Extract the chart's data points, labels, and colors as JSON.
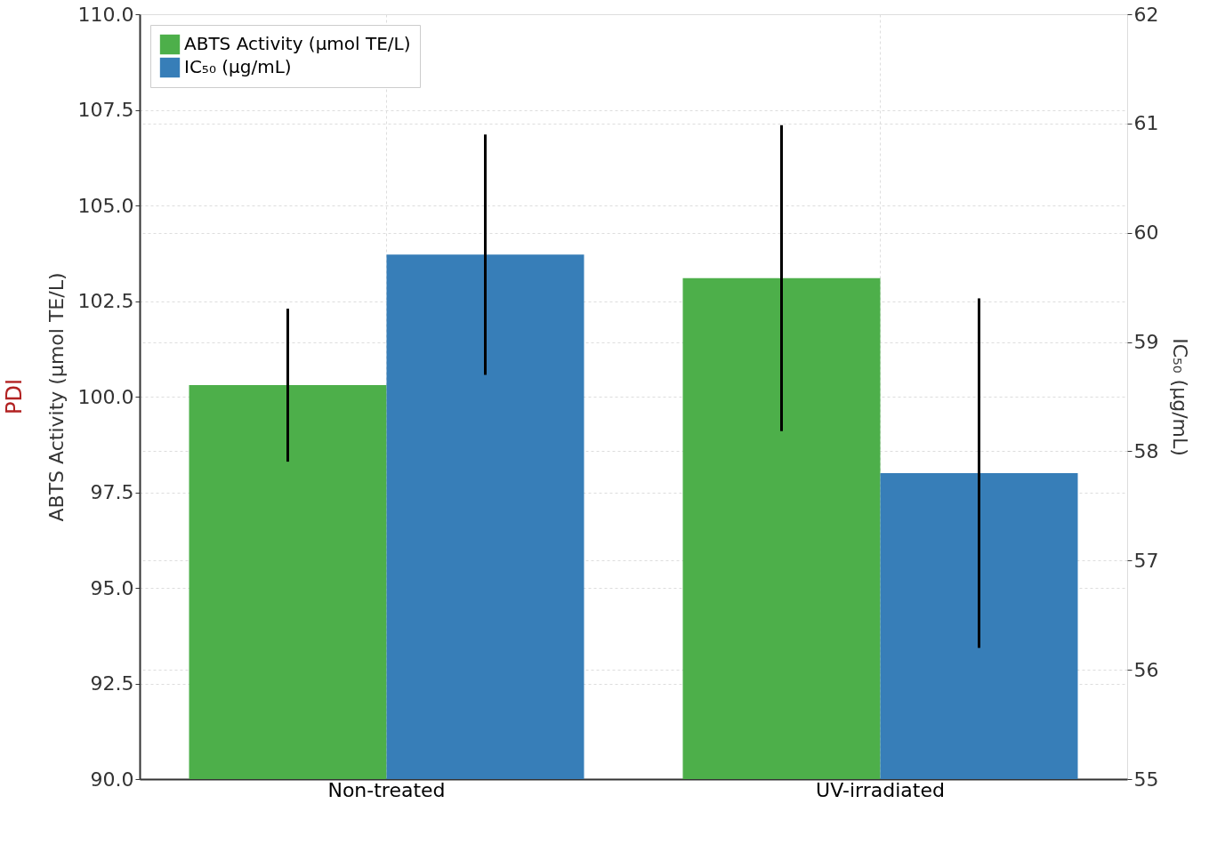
{
  "chart_data": {
    "type": "bar",
    "categories": [
      "Non-treated",
      "UV-irradiated"
    ],
    "ylabel": "ABTS Activity (µmol TE/L)",
    "y2label": "IC₅₀ (µg/mL)",
    "annotations": [
      "PDI"
    ],
    "series": [
      {
        "name": "ABTS Activity (µmol TE/L)",
        "color": "#4daf4a",
        "values": [
          100.3,
          103.1
        ],
        "errors": [
          2.0,
          4.0
        ]
      },
      {
        "name": "IC₅₀ (µg/mL)",
        "color": "#377eb8",
        "values": [
          59.8,
          57.8
        ],
        "errors": [
          1.1,
          1.6
        ],
        "axis": "y2"
      }
    ],
    "ylim": [
      90,
      110
    ],
    "yticks": [
      {
        "value": 90,
        "label": "90.0"
      },
      {
        "value": 92.5,
        "label": "92.5"
      },
      {
        "value": 95,
        "label": "95.0"
      },
      {
        "value": 97.5,
        "label": "97.5"
      },
      {
        "value": 100,
        "label": "100.0"
      },
      {
        "value": 102.5,
        "label": "102.5"
      },
      {
        "value": 105,
        "label": "105.0"
      },
      {
        "value": 107.5,
        "label": "107.5"
      },
      {
        "value": 110,
        "label": "110.0"
      }
    ],
    "y2lim": [
      55,
      62
    ],
    "y2ticks": [
      55,
      56,
      57,
      58,
      59,
      60,
      61,
      62
    ],
    "grid": true,
    "legend": "top left"
  }
}
